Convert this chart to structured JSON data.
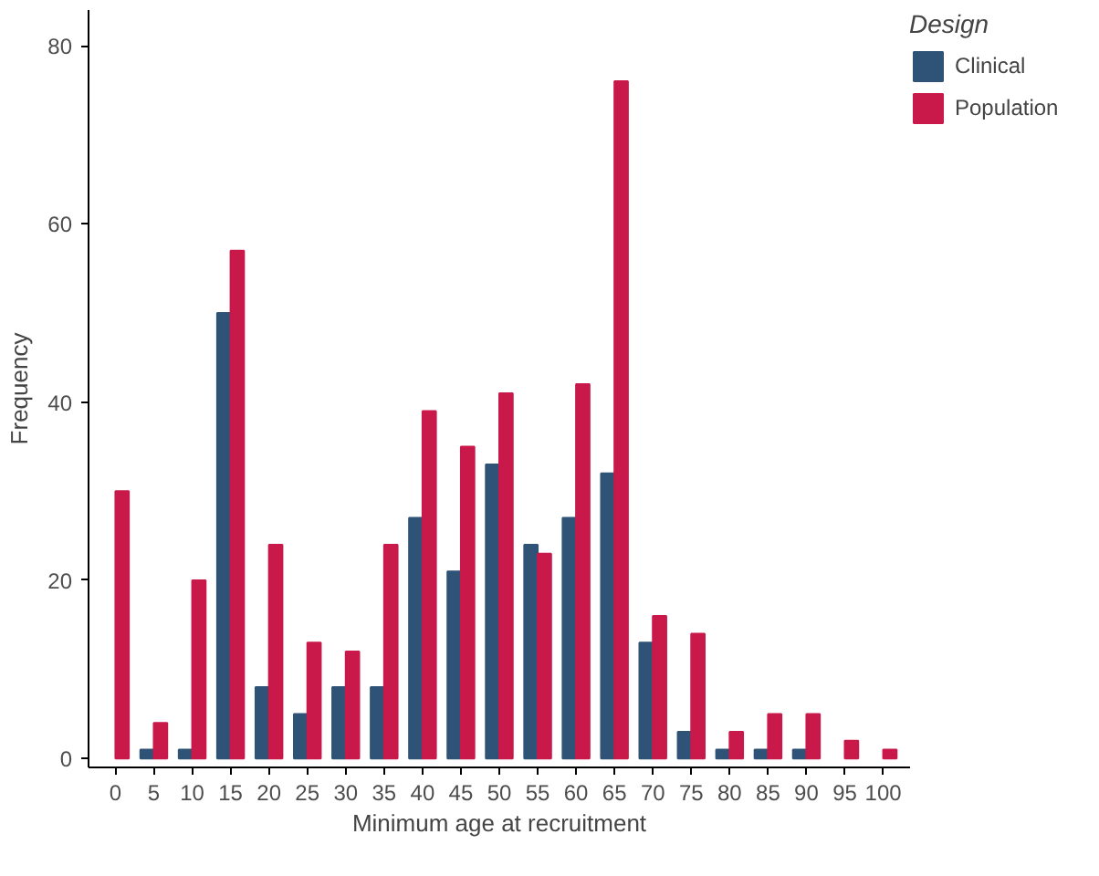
{
  "chart_data": {
    "type": "bar",
    "xlabel": "Minimum age at recruitment",
    "ylabel": "Frequency",
    "legend_title": "Design",
    "legend": "right",
    "categories": [
      "0",
      "5",
      "10",
      "15",
      "20",
      "25",
      "30",
      "35",
      "40",
      "45",
      "50",
      "55",
      "60",
      "65",
      "70",
      "75",
      "80",
      "85",
      "90",
      "95",
      "100"
    ],
    "series": [
      {
        "name": "Clinical",
        "color": "#2e5377",
        "values": [
          null,
          1,
          1,
          50,
          8,
          5,
          8,
          8,
          27,
          21,
          33,
          24,
          27,
          32,
          13,
          3,
          1,
          1,
          1,
          null,
          null
        ]
      },
      {
        "name": "Population",
        "color": "#c8194a",
        "values": [
          30,
          4,
          20,
          57,
          24,
          13,
          12,
          24,
          39,
          35,
          41,
          23,
          42,
          76,
          16,
          14,
          3,
          5,
          5,
          2,
          1
        ]
      }
    ],
    "ylim": [
      -1,
      84
    ],
    "yticks": [
      0,
      20,
      40,
      60,
      80
    ],
    "grid": false
  }
}
